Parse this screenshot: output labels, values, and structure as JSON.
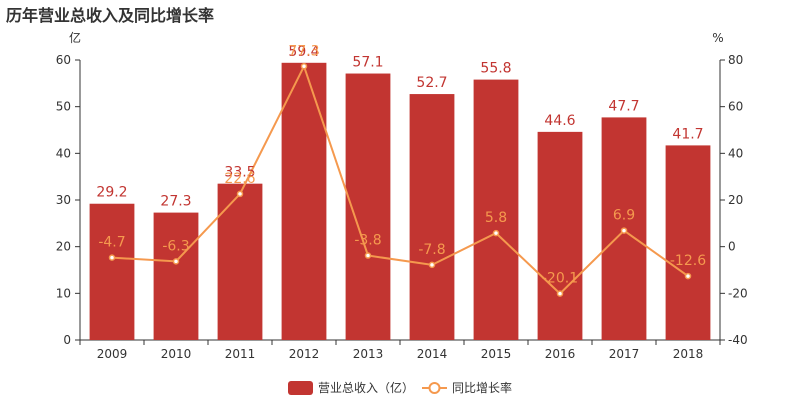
{
  "chart_data": {
    "type": "bar+line",
    "title": "历年营业总收入及同比增长率",
    "left_unit": "亿",
    "right_unit": "%",
    "categories": [
      "2009",
      "2010",
      "2011",
      "2012",
      "2013",
      "2014",
      "2015",
      "2016",
      "2017",
      "2018"
    ],
    "series": [
      {
        "name": "营业总收入（亿）",
        "type": "bar",
        "axis": "left",
        "values": [
          29.2,
          27.3,
          33.5,
          59.4,
          57.1,
          52.7,
          55.8,
          44.6,
          47.7,
          41.7
        ],
        "labels": [
          "29.2",
          "27.3",
          "33.5",
          "59.4",
          "57.1",
          "52.7",
          "55.8",
          "44.6",
          "47.7",
          "41.7"
        ]
      },
      {
        "name": "同比增长率",
        "type": "line",
        "axis": "right",
        "values": [
          -4.7,
          -6.3,
          22.6,
          77.3,
          -3.8,
          -7.8,
          5.8,
          -20.1,
          6.9,
          -12.6
        ],
        "labels": [
          "-4.7",
          "-6.3",
          "22.6",
          "77.3",
          "-3.8",
          "-7.8",
          "5.8",
          "-20.1",
          "6.9",
          "-12.6"
        ]
      }
    ],
    "left_axis": {
      "min": 0,
      "max": 60,
      "ticks": [
        "0",
        "10",
        "20",
        "30",
        "40",
        "50",
        "60"
      ]
    },
    "right_axis": {
      "min": -40,
      "max": 80,
      "ticks": [
        "-40",
        "-20",
        "0",
        "20",
        "40",
        "60",
        "80"
      ]
    },
    "legend_position": "bottom-center",
    "colors": {
      "bar": "#c23531",
      "line": "#f5994e"
    }
  }
}
